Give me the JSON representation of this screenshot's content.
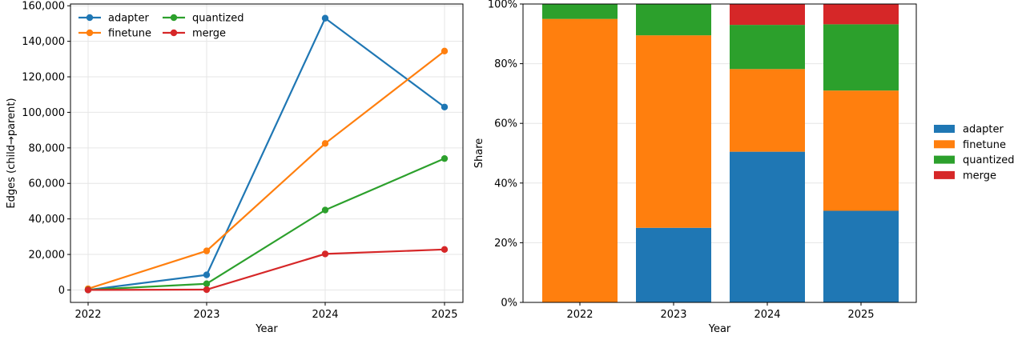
{
  "chart_data": [
    {
      "type": "line",
      "x": [
        2022,
        2023,
        2024,
        2025
      ],
      "xlabel": "Year",
      "ylabel": "Edges (child→parent)",
      "ylim": [
        -7000,
        161000
      ],
      "yticks": [
        0,
        20000,
        40000,
        60000,
        80000,
        100000,
        120000,
        140000,
        160000
      ],
      "ytick_labels": [
        "0",
        "20,000",
        "40,000",
        "60,000",
        "80,000",
        "100,000",
        "120,000",
        "140,000",
        "160,000"
      ],
      "xtick_labels": [
        "2022",
        "2023",
        "2024",
        "2025"
      ],
      "grid": true,
      "legend": "upper-left, two columns",
      "series": [
        {
          "name": "adapter",
          "color": "#1f77b4",
          "values": [
            0,
            8500,
            153000,
            103000
          ]
        },
        {
          "name": "finetune",
          "color": "#ff7f0e",
          "values": [
            700,
            22000,
            82500,
            134500
          ]
        },
        {
          "name": "quantized",
          "color": "#2ca02c",
          "values": [
            100,
            3500,
            45000,
            74000
          ]
        },
        {
          "name": "merge",
          "color": "#d62728",
          "values": [
            0,
            200,
            20300,
            22800
          ]
        }
      ]
    },
    {
      "type": "bar",
      "stacked": true,
      "categories": [
        "2022",
        "2023",
        "2024",
        "2025"
      ],
      "xlabel": "Year",
      "ylabel": "Share",
      "ylim": [
        0,
        1
      ],
      "yticks": [
        0,
        0.2,
        0.4,
        0.6,
        0.8,
        1.0
      ],
      "ytick_labels": [
        "0%",
        "20%",
        "40%",
        "60%",
        "80%",
        "100%"
      ],
      "grid": true,
      "legend": "right-center",
      "series": [
        {
          "name": "adapter",
          "color": "#1f77b4",
          "values": [
            0.0,
            0.25,
            0.505,
            0.307
          ]
        },
        {
          "name": "finetune",
          "color": "#ff7f0e",
          "values": [
            0.95,
            0.645,
            0.277,
            0.403
          ]
        },
        {
          "name": "quantized",
          "color": "#2ca02c",
          "values": [
            0.05,
            0.105,
            0.148,
            0.222
          ]
        },
        {
          "name": "merge",
          "color": "#d62728",
          "values": [
            0.0,
            0.0,
            0.07,
            0.068
          ]
        }
      ]
    }
  ]
}
